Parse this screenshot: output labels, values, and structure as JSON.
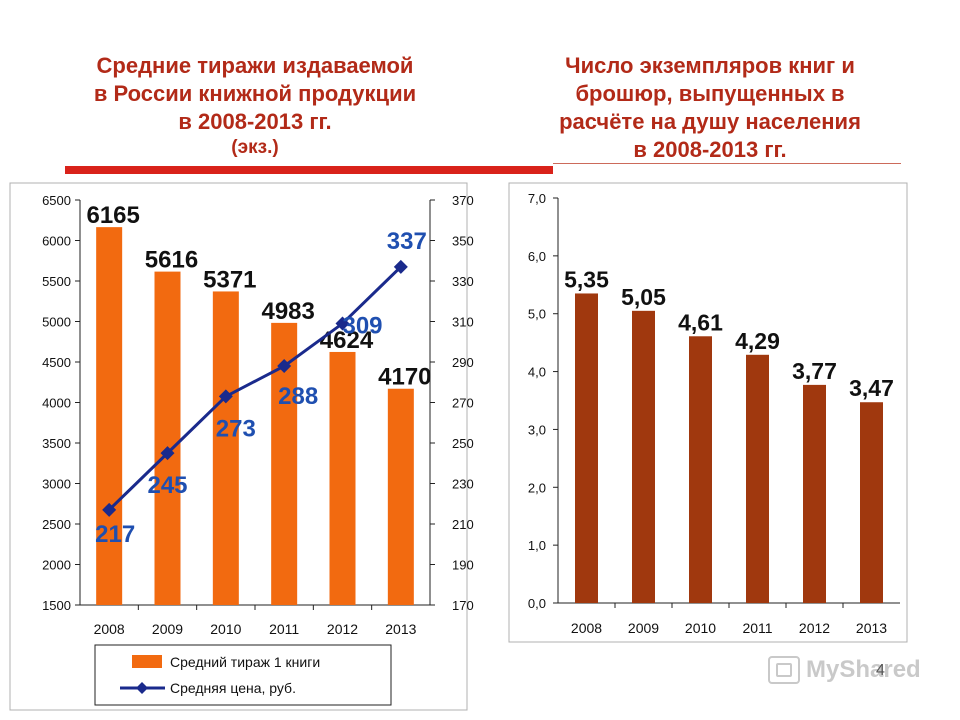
{
  "headings": {
    "left": {
      "lines": [
        "Средние тиражи издаваемой",
        "в России книжной продукции",
        "в 2008-2013 гг."
      ],
      "unit": "(экз.)"
    },
    "right": {
      "lines": [
        "Число экземпляров книг и",
        "брошюр, выпущенных в",
        "расчёте на душу населения",
        "в 2008-2013 гг."
      ]
    }
  },
  "colors": {
    "heading": "#b22a18",
    "accent_bar": "#d9221a",
    "orange_bar": "#f26a10",
    "brown_bar": "#a0380e",
    "line": "#1a2a8c",
    "line_label": "#1f4fb0"
  },
  "chart_data": [
    {
      "type": "bar",
      "categories": [
        "2008",
        "2009",
        "2010",
        "2011",
        "2012",
        "2013"
      ],
      "series": [
        {
          "name": "Средний тираж 1 книги",
          "type": "bar",
          "axis": "left",
          "values": [
            6165,
            5616,
            5371,
            4983,
            4624,
            4170
          ],
          "labels": [
            "6165",
            "5616",
            "5371",
            "4983",
            "4624",
            "4170"
          ]
        },
        {
          "name": "Средняя цена, руб.",
          "type": "line",
          "axis": "right",
          "values": [
            217,
            245,
            273,
            288,
            309,
            337
          ],
          "labels": [
            "217",
            "245",
            "273",
            "288",
            "309",
            "337"
          ]
        }
      ],
      "left_axis": {
        "ylim": [
          1500,
          6500
        ],
        "ticks": [
          "1500",
          "2000",
          "2500",
          "3000",
          "3500",
          "4000",
          "4500",
          "5000",
          "5500",
          "6000",
          "6500"
        ]
      },
      "right_axis": {
        "ylim": [
          170,
          370
        ],
        "ticks": [
          "170",
          "190",
          "210",
          "230",
          "250",
          "270",
          "290",
          "310",
          "330",
          "350",
          "370"
        ]
      },
      "legend": {
        "position": "bottom",
        "items": [
          "Средний тираж 1 книги",
          "Средняя цена, руб."
        ]
      },
      "grid": false
    },
    {
      "type": "bar",
      "categories": [
        "2008",
        "2009",
        "2010",
        "2011",
        "2012",
        "2013"
      ],
      "values": [
        5.35,
        5.05,
        4.61,
        4.29,
        3.77,
        3.47
      ],
      "labels": [
        "5,35",
        "5,05",
        "4,61",
        "4,29",
        "3,77",
        "3,47"
      ],
      "ylim": [
        0,
        7
      ],
      "ticks": [
        "0,0",
        "1,0",
        "2,0",
        "3,0",
        "4,0",
        "5,0",
        "6,0",
        "7,0"
      ],
      "grid": false
    }
  ],
  "watermark": {
    "text": "MyShared"
  },
  "page_number": "4"
}
